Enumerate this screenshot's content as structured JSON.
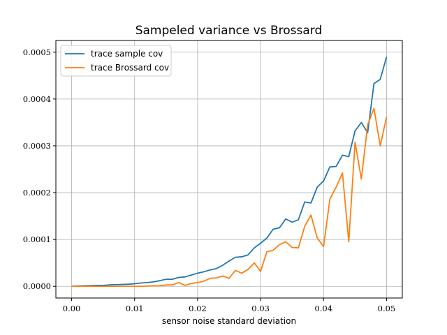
{
  "chart_data": {
    "type": "line",
    "title": "Sampeled variance vs Brossard",
    "xlabel": "sensor noise standard deviation",
    "ylabel": "",
    "xlim": [
      -0.0025,
      0.0525
    ],
    "ylim": [
      -2.5e-05,
      0.000525
    ],
    "xticks": [
      0.0,
      0.01,
      0.02,
      0.03,
      0.04,
      0.05
    ],
    "xtick_labels": [
      "0.00",
      "0.01",
      "0.02",
      "0.03",
      "0.04",
      "0.05"
    ],
    "yticks": [
      0.0,
      0.0001,
      0.0002,
      0.0003,
      0.0004,
      0.0005
    ],
    "ytick_labels": [
      "0.0000",
      "0.0001",
      "0.0002",
      "0.0003",
      "0.0004",
      "0.0005"
    ],
    "grid": true,
    "legend_position": "top-left",
    "x": [
      0.0,
      0.001,
      0.002,
      0.003,
      0.004,
      0.005,
      0.006,
      0.007,
      0.008,
      0.009,
      0.01,
      0.011,
      0.012,
      0.013,
      0.014,
      0.015,
      0.016,
      0.017,
      0.018,
      0.019,
      0.02,
      0.021,
      0.022,
      0.023,
      0.024,
      0.025,
      0.026,
      0.027,
      0.028,
      0.029,
      0.03,
      0.031,
      0.032,
      0.033,
      0.034,
      0.035,
      0.036,
      0.037,
      0.038,
      0.039,
      0.04,
      0.041,
      0.042,
      0.043,
      0.044,
      0.045,
      0.046,
      0.047,
      0.048,
      0.049,
      0.05
    ],
    "series": [
      {
        "name": "trace sample cov",
        "color": "#1f77b4",
        "values": [
          0.0,
          5e-07,
          1e-06,
          1.5e-06,
          2e-06,
          2e-06,
          3e-06,
          3.5e-06,
          4e-06,
          4.5e-06,
          5.5e-06,
          7e-06,
          8e-06,
          9.5e-06,
          1.2e-05,
          1.5e-05,
          1.5e-05,
          1.9e-05,
          2e-05,
          2.4e-05,
          2.8e-05,
          3.1e-05,
          3.5e-05,
          3.8e-05,
          4.5e-05,
          5.4e-05,
          6.2e-05,
          6.3e-05,
          6.7e-05,
          8.2e-05,
          9.2e-05,
          0.000103,
          0.000122,
          0.000125,
          0.000144,
          0.000137,
          0.000142,
          0.00018,
          0.000178,
          0.000212,
          0.000225,
          0.000255,
          0.000256,
          0.00028,
          0.000277,
          0.000332,
          0.00035,
          0.000328,
          0.000433,
          0.000442,
          0.00049
        ]
      },
      {
        "name": "trace Brossard cov",
        "color": "#ff7f0e",
        "values": [
          0.0,
          0.0,
          0.0,
          0.0,
          0.0,
          0.0,
          0.0,
          0.0,
          0.0,
          0.0,
          0.0,
          0.0,
          5e-07,
          1e-06,
          1e-06,
          3e-06,
          3e-06,
          8e-06,
          2e-06,
          6e-06,
          8e-06,
          1.1e-05,
          1.7e-05,
          1.8e-05,
          2.2e-05,
          1.7e-05,
          3.4e-05,
          2.8e-05,
          3.6e-05,
          5e-05,
          3.2e-05,
          7.4e-05,
          7.7e-05,
          8.9e-05,
          9.5e-05,
          8.3e-05,
          8.2e-05,
          0.000128,
          0.000152,
          0.000103,
          8.5e-05,
          0.000186,
          0.000212,
          0.000242,
          9.5e-05,
          0.000308,
          0.000229,
          0.000345,
          0.00038,
          0.0003,
          0.000362
        ]
      }
    ]
  }
}
